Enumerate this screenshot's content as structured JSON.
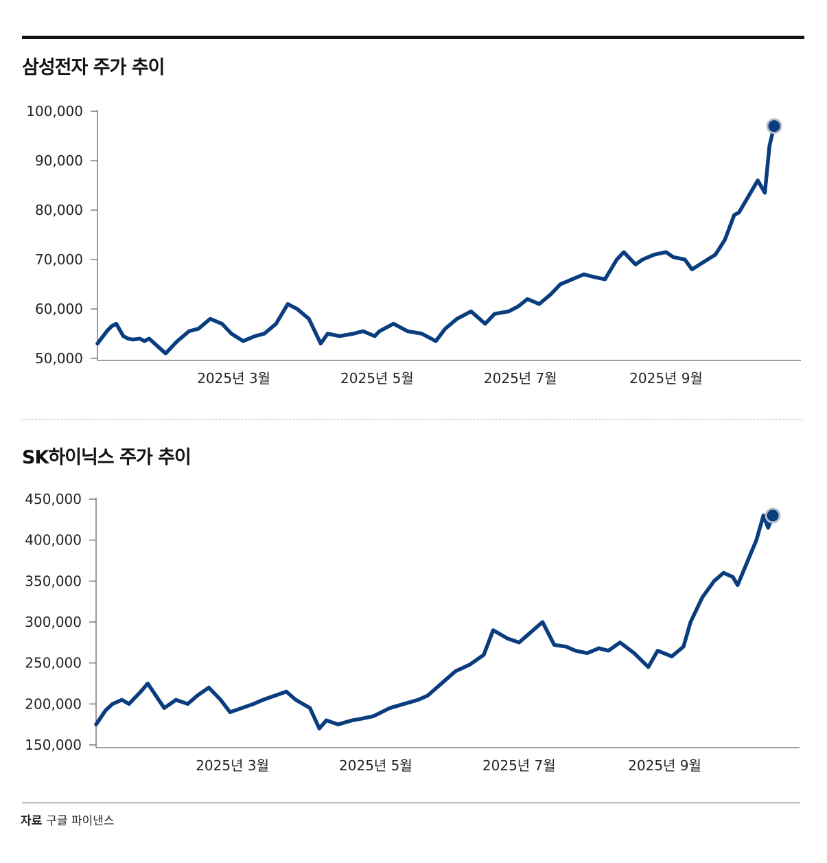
{
  "charts": [
    {
      "title": "삼성전자 주가 추이",
      "chart_data": {
        "type": "line",
        "title": "삼성전자 주가 추이",
        "xlabel": "",
        "ylabel": "",
        "ylim": [
          50000,
          100000
        ],
        "yticks": [
          50000,
          60000,
          70000,
          80000,
          90000,
          100000
        ],
        "ytick_labels": [
          "50,000",
          "60,000",
          "70,000",
          "80,000",
          "90,000",
          "100,000"
        ],
        "xlim": [
          "2025-01-02",
          "2025-10-17"
        ],
        "xticks": [
          "2025-03-01",
          "2025-05-01",
          "2025-07-01",
          "2025-09-01"
        ],
        "xtick_labels": [
          "2025년 3월",
          "2025년 5월",
          "2025년 7월",
          "2025년 9월"
        ],
        "line_color": "#0a3d7e",
        "end_marker": true,
        "series": [
          {
            "x": [
              "2025-01-02",
              "2025-01-06",
              "2025-01-08",
              "2025-01-10",
              "2025-01-13",
              "2025-01-15",
              "2025-01-17",
              "2025-01-20",
              "2025-01-22",
              "2025-01-24",
              "2025-01-31",
              "2025-02-05",
              "2025-02-10",
              "2025-02-14",
              "2025-02-19",
              "2025-02-24",
              "2025-02-28",
              "2025-03-05",
              "2025-03-10",
              "2025-03-14",
              "2025-03-19",
              "2025-03-24",
              "2025-03-28",
              "2025-04-02",
              "2025-04-07",
              "2025-04-10",
              "2025-04-15",
              "2025-04-21",
              "2025-04-25",
              "2025-04-30",
              "2025-05-02",
              "2025-05-08",
              "2025-05-14",
              "2025-05-20",
              "2025-05-26",
              "2025-05-30",
              "2025-06-04",
              "2025-06-10",
              "2025-06-16",
              "2025-06-20",
              "2025-06-26",
              "2025-06-30",
              "2025-07-04",
              "2025-07-09",
              "2025-07-14",
              "2025-07-18",
              "2025-07-23",
              "2025-07-28",
              "2025-08-01",
              "2025-08-06",
              "2025-08-11",
              "2025-08-14",
              "2025-08-19",
              "2025-08-22",
              "2025-08-27",
              "2025-09-01",
              "2025-09-04",
              "2025-09-09",
              "2025-09-12",
              "2025-09-17",
              "2025-09-22",
              "2025-09-26",
              "2025-09-30",
              "2025-10-02",
              "2025-10-10",
              "2025-10-13",
              "2025-10-15",
              "2025-10-17"
            ],
            "values": [
              53000,
              55500,
              56500,
              57000,
              54500,
              54000,
              53800,
              54000,
              53500,
              54000,
              51000,
              53500,
              55500,
              56000,
              58000,
              57000,
              55000,
              53500,
              54500,
              55000,
              57000,
              61000,
              60000,
              58000,
              53000,
              55000,
              54500,
              55000,
              55500,
              54500,
              55500,
              57000,
              55500,
              55000,
              53500,
              56000,
              58000,
              59500,
              57000,
              59000,
              59500,
              60500,
              62000,
              61000,
              63000,
              65000,
              66000,
              67000,
              66500,
              66000,
              70000,
              71500,
              69000,
              70000,
              71000,
              71500,
              70500,
              70000,
              68000,
              69500,
              71000,
              74000,
              79000,
              79500,
              86000,
              83500,
              93000,
              97000
            ]
          }
        ]
      }
    },
    {
      "title": "SK하이닉스 주가 추이",
      "chart_data": {
        "type": "line",
        "title": "SK하이닉스 주가 추이",
        "xlabel": "",
        "ylabel": "",
        "ylim": [
          150000,
          450000
        ],
        "yticks": [
          150000,
          200000,
          250000,
          300000,
          350000,
          400000,
          450000
        ],
        "ytick_labels": [
          "150,000",
          "200,000",
          "250,000",
          "300,000",
          "350,000",
          "400,000",
          "450,000"
        ],
        "xlim": [
          "2025-01-02",
          "2025-10-17"
        ],
        "xticks": [
          "2025-03-01",
          "2025-05-01",
          "2025-07-01",
          "2025-09-01"
        ],
        "xtick_labels": [
          "2025년 3월",
          "2025년 5월",
          "2025년 7월",
          "2025년 9월"
        ],
        "line_color": "#0a3d7e",
        "end_marker": true,
        "series": [
          {
            "x": [
              "2025-01-02",
              "2025-01-06",
              "2025-01-09",
              "2025-01-13",
              "2025-01-16",
              "2025-01-21",
              "2025-01-24",
              "2025-01-31",
              "2025-02-05",
              "2025-02-10",
              "2025-02-14",
              "2025-02-19",
              "2025-02-24",
              "2025-02-28",
              "2025-03-05",
              "2025-03-10",
              "2025-03-14",
              "2025-03-19",
              "2025-03-24",
              "2025-03-28",
              "2025-04-03",
              "2025-04-07",
              "2025-04-10",
              "2025-04-15",
              "2025-04-21",
              "2025-04-25",
              "2025-04-30",
              "2025-05-07",
              "2025-05-13",
              "2025-05-19",
              "2025-05-23",
              "2025-05-29",
              "2025-06-04",
              "2025-06-10",
              "2025-06-16",
              "2025-06-20",
              "2025-06-26",
              "2025-07-01",
              "2025-07-07",
              "2025-07-11",
              "2025-07-16",
              "2025-07-21",
              "2025-07-25",
              "2025-07-30",
              "2025-08-04",
              "2025-08-08",
              "2025-08-13",
              "2025-08-19",
              "2025-08-25",
              "2025-08-29",
              "2025-09-04",
              "2025-09-09",
              "2025-09-12",
              "2025-09-17",
              "2025-09-22",
              "2025-09-26",
              "2025-09-30",
              "2025-10-02",
              "2025-10-10",
              "2025-10-13",
              "2025-10-15",
              "2025-10-17"
            ],
            "values": [
              175000,
              192000,
              200000,
              205000,
              200000,
              215000,
              225000,
              195000,
              205000,
              200000,
              210000,
              220000,
              205000,
              190000,
              195000,
              200000,
              205000,
              210000,
              215000,
              205000,
              195000,
              170000,
              180000,
              175000,
              180000,
              182000,
              185000,
              195000,
              200000,
              205000,
              210000,
              225000,
              240000,
              248000,
              260000,
              290000,
              280000,
              275000,
              290000,
              300000,
              272000,
              270000,
              265000,
              262000,
              268000,
              265000,
              275000,
              262000,
              245000,
              265000,
              258000,
              270000,
              300000,
              330000,
              350000,
              360000,
              355000,
              345000,
              400000,
              430000,
              415000,
              430000
            ]
          }
        ]
      }
    }
  ],
  "source": {
    "label": "자료",
    "text": "구글 파이낸스"
  }
}
